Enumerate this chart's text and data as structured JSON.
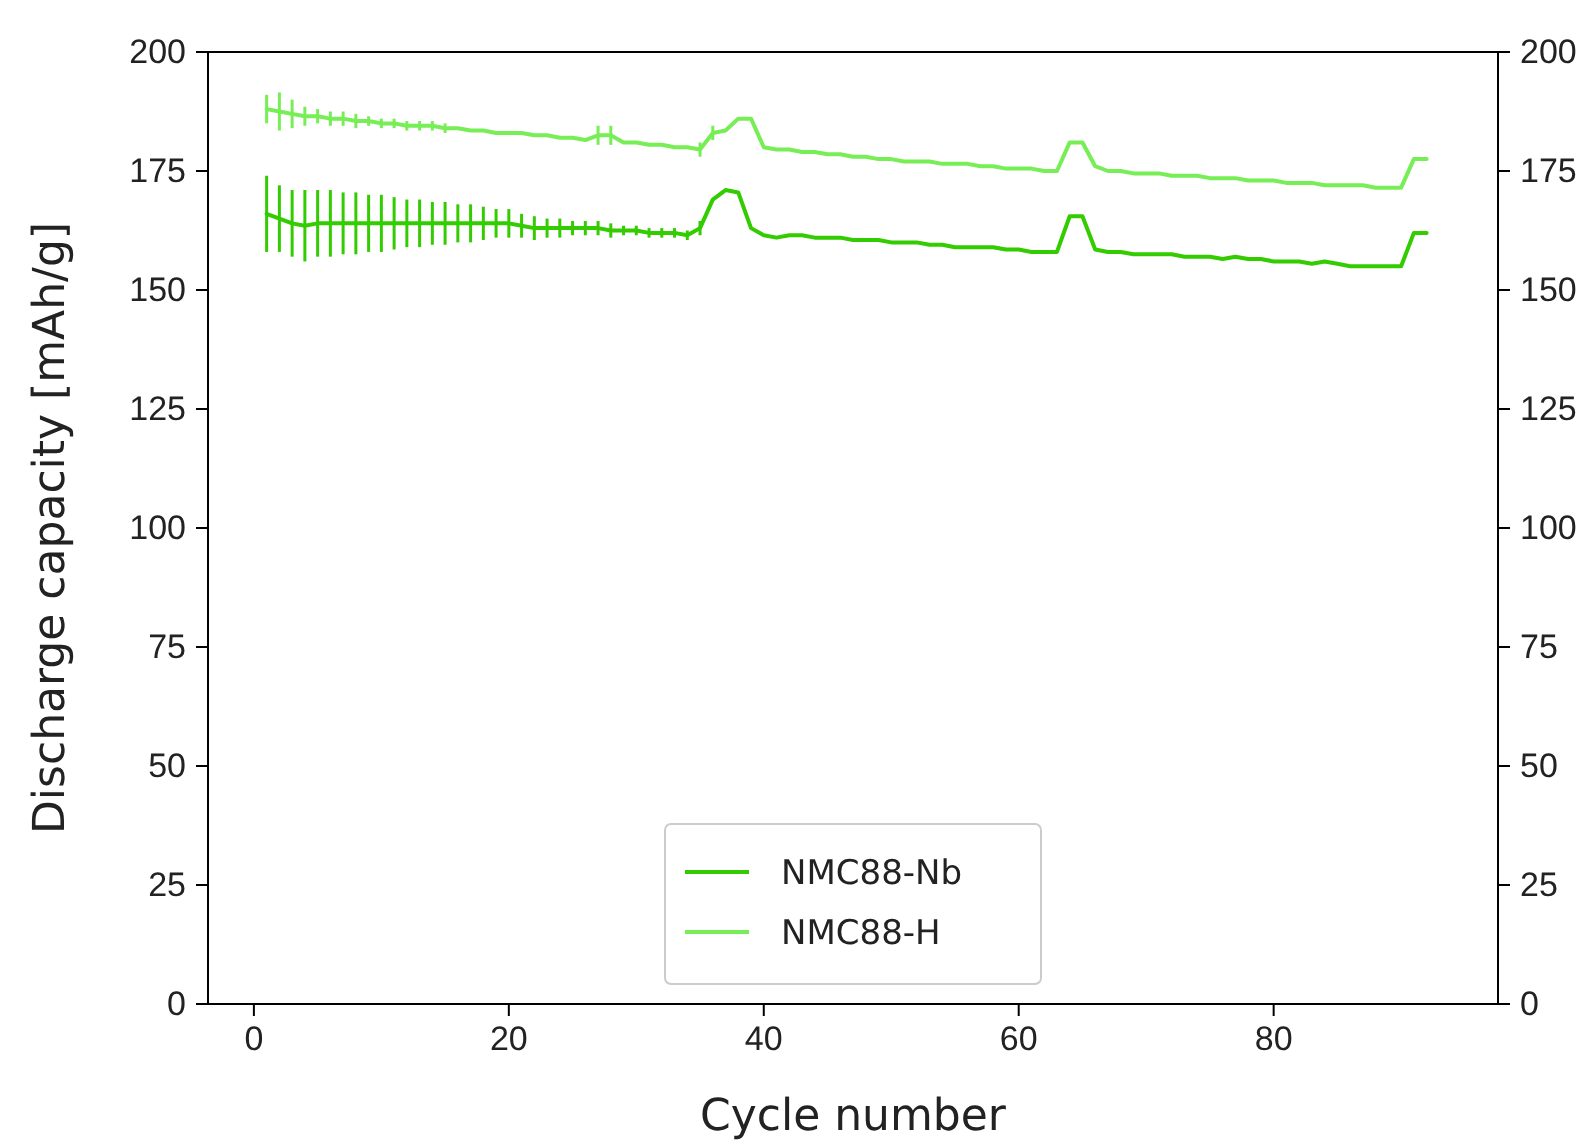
{
  "chart_data": {
    "type": "line",
    "xlabel": "Cycle number",
    "ylabel": "Discharge capacity [mAh/g]",
    "x": [
      1,
      2,
      3,
      4,
      5,
      6,
      7,
      8,
      9,
      10,
      11,
      12,
      13,
      14,
      15,
      16,
      17,
      18,
      19,
      20,
      21,
      22,
      23,
      24,
      25,
      26,
      27,
      28,
      29,
      30,
      31,
      32,
      33,
      34,
      35,
      36,
      37,
      38,
      39,
      40,
      41,
      42,
      43,
      44,
      45,
      46,
      47,
      48,
      49,
      50,
      51,
      52,
      53,
      54,
      55,
      56,
      57,
      58,
      59,
      60,
      61,
      62,
      63,
      64,
      65,
      66,
      67,
      68,
      69,
      70,
      71,
      72,
      73,
      74,
      75,
      76,
      77,
      78,
      79,
      80,
      81,
      82,
      83,
      84,
      85,
      86,
      87,
      88,
      89,
      90,
      91,
      92
    ],
    "xlim": [
      -3.6,
      97.6
    ],
    "xticks": [
      0,
      20,
      40,
      60,
      80
    ],
    "ylim": [
      0,
      200
    ],
    "yticks": [
      0,
      25,
      50,
      75,
      100,
      125,
      150,
      175,
      200
    ],
    "y2lim": [
      0,
      200
    ],
    "y2ticks": [
      0,
      25,
      50,
      75,
      100,
      125,
      150,
      175,
      200
    ],
    "legend": "bottom",
    "series": [
      {
        "name": "NMC88-Nb",
        "color": "#33cc00",
        "values": [
          166,
          165,
          164,
          163.5,
          164,
          164,
          164,
          164,
          164,
          164,
          164,
          164,
          164,
          164,
          164,
          164,
          164,
          164,
          164,
          164,
          163.5,
          163,
          163,
          163,
          163,
          163,
          163,
          162.5,
          162.5,
          162.5,
          162,
          162,
          162,
          161.5,
          163,
          169,
          171,
          170.5,
          163,
          161.5,
          161,
          161.5,
          161.5,
          161,
          161,
          161,
          160.5,
          160.5,
          160.5,
          160,
          160,
          160,
          159.5,
          159.5,
          159,
          159,
          159,
          159,
          158.5,
          158.5,
          158,
          158,
          158,
          165.5,
          165.5,
          158.5,
          158,
          158,
          157.5,
          157.5,
          157.5,
          157.5,
          157,
          157,
          157,
          156.5,
          157,
          156.5,
          156.5,
          156,
          156,
          156,
          155.5,
          156,
          155.5,
          155,
          155,
          155,
          155,
          155,
          162,
          162
        ],
        "errors": [
          8,
          7,
          7,
          7.5,
          7,
          7,
          6.5,
          6.5,
          6,
          6,
          5.5,
          5,
          5,
          4.5,
          4.5,
          4,
          4,
          3.5,
          3,
          3,
          2.5,
          2.5,
          2,
          2,
          1.5,
          1.5,
          1.5,
          1.5,
          1,
          1,
          1,
          1,
          1,
          1,
          1.5,
          null,
          null,
          null,
          null,
          null,
          null,
          null,
          null,
          null,
          null,
          null,
          null,
          null,
          null,
          null,
          null,
          null,
          null,
          null,
          null,
          null,
          null,
          null,
          null,
          null,
          null,
          null,
          null,
          null,
          null,
          null,
          null,
          null,
          null,
          null,
          null,
          null,
          null,
          null,
          null,
          null,
          null,
          null,
          null,
          null,
          null,
          null,
          null,
          null,
          null,
          null,
          null,
          null,
          null,
          null,
          null,
          null
        ]
      },
      {
        "name": "NMC88-H",
        "color": "#77ee55",
        "values": [
          188,
          187.5,
          187,
          186.5,
          186.5,
          186,
          186,
          185.5,
          185.5,
          185,
          185,
          184.5,
          184.5,
          184.5,
          184,
          184,
          183.5,
          183.5,
          183,
          183,
          183,
          182.5,
          182.5,
          182,
          182,
          181.5,
          182.5,
          182.5,
          181,
          181,
          180.5,
          180.5,
          180,
          180,
          179.5,
          183,
          183.5,
          186,
          186,
          180,
          179.5,
          179.5,
          179,
          179,
          178.5,
          178.5,
          178,
          178,
          177.5,
          177.5,
          177,
          177,
          177,
          176.5,
          176.5,
          176.5,
          176,
          176,
          175.5,
          175.5,
          175.5,
          175,
          175,
          181,
          181,
          176,
          175,
          175,
          174.5,
          174.5,
          174.5,
          174,
          174,
          174,
          173.5,
          173.5,
          173.5,
          173,
          173,
          173,
          172.5,
          172.5,
          172.5,
          172,
          172,
          172,
          172,
          171.5,
          171.5,
          171.5,
          177.5,
          177.5
        ],
        "errors": [
          3,
          4,
          3,
          2,
          1.5,
          1.5,
          1.5,
          1.5,
          1,
          1,
          1,
          1,
          1,
          1,
          1,
          null,
          null,
          null,
          null,
          null,
          null,
          null,
          null,
          null,
          null,
          null,
          2,
          2,
          null,
          null,
          null,
          null,
          null,
          null,
          1.5,
          1.5,
          null,
          null,
          null,
          null,
          null,
          null,
          null,
          null,
          null,
          null,
          null,
          null,
          null,
          null,
          null,
          null,
          null,
          null,
          null,
          null,
          null,
          null,
          null,
          null,
          null,
          null,
          null,
          null,
          null,
          null,
          null,
          null,
          null,
          null,
          null,
          null,
          null,
          null,
          null,
          null,
          null,
          null,
          null,
          null,
          null,
          null,
          null,
          null,
          null,
          null,
          null,
          null,
          null,
          null,
          null,
          null
        ]
      }
    ]
  }
}
